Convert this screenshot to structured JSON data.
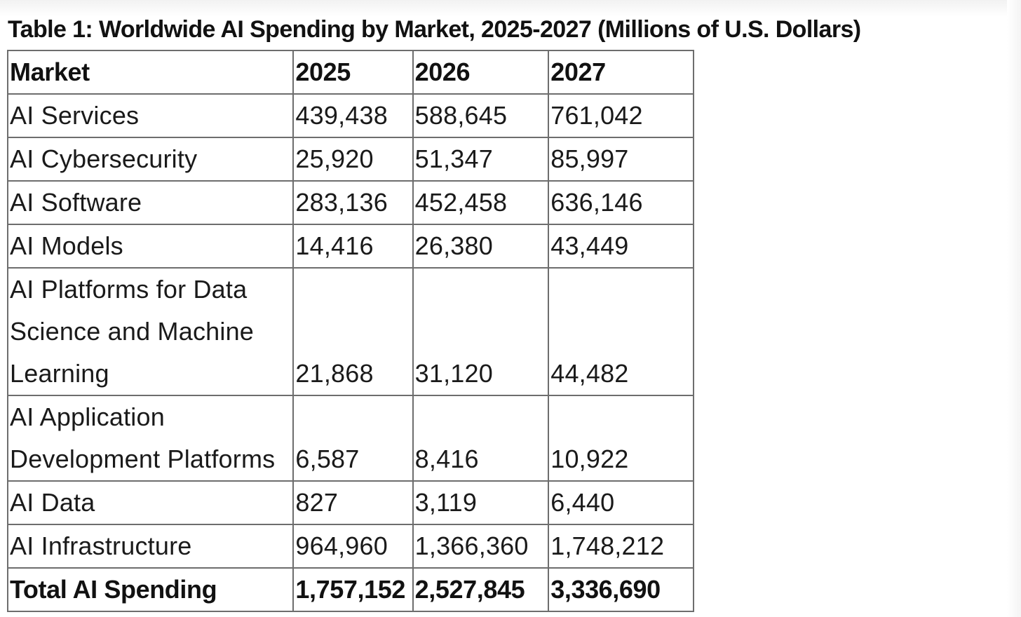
{
  "chart_data": {
    "type": "table",
    "title": "Table 1: Worldwide AI Spending by Market, 2025-2027 (Millions of U.S. Dollars)",
    "columns": [
      "Market",
      "2025",
      "2026",
      "2027"
    ],
    "rows": [
      {
        "market": "AI Services",
        "values": [
          "439,438",
          "588,645",
          "761,042"
        ]
      },
      {
        "market": "AI Cybersecurity",
        "values": [
          "25,920",
          "51,347",
          "85,997"
        ]
      },
      {
        "market": "AI Software",
        "values": [
          "283,136",
          "452,458",
          "636,146"
        ]
      },
      {
        "market": "AI Models",
        "values": [
          "14,416",
          "26,380",
          "43,449"
        ]
      },
      {
        "market": "AI Platforms for Data Science and Machine Learning",
        "values": [
          "21,868",
          "31,120",
          "44,482"
        ]
      },
      {
        "market": "AI Application Development Platforms",
        "values": [
          "6,587",
          "8,416",
          "10,922"
        ]
      },
      {
        "market": "AI Data",
        "values": [
          "827",
          "3,119",
          "6,440"
        ]
      },
      {
        "market": "AI Infrastructure",
        "values": [
          "964,960",
          "1,366,360",
          "1,748,212"
        ]
      }
    ],
    "total": {
      "market": "Total AI Spending",
      "values": [
        "1,757,152",
        "2,527,845",
        "3,336,690"
      ]
    }
  }
}
